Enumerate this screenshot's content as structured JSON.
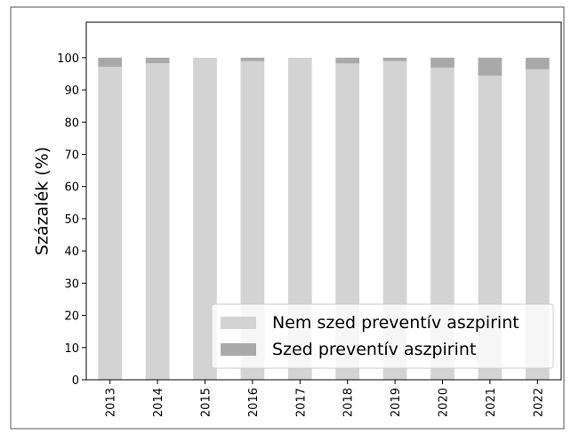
{
  "chart_data": {
    "type": "stacked_bar",
    "ylabel": "Százalék (%)",
    "categories": [
      "2013",
      "2014",
      "2015",
      "2016",
      "2017",
      "2018",
      "2019",
      "2020",
      "2021",
      "2022"
    ],
    "series": [
      {
        "name": "Nem szed preventív aszpirint",
        "color": "#d3d3d3",
        "values": [
          97.2,
          98.3,
          100,
          98.9,
          100,
          98.2,
          98.9,
          96.9,
          94.4,
          96.4
        ]
      },
      {
        "name": "Szed preventív aszpirint",
        "color": "#a9a9a9",
        "values": [
          2.8,
          1.7,
          0,
          1.1,
          0,
          1.8,
          1.1,
          3.1,
          5.6,
          3.6
        ]
      }
    ],
    "ylim": [
      0,
      111
    ],
    "yticks": [
      0,
      10,
      20,
      30,
      40,
      50,
      60,
      70,
      80,
      90,
      100
    ],
    "legend": "lower right"
  }
}
